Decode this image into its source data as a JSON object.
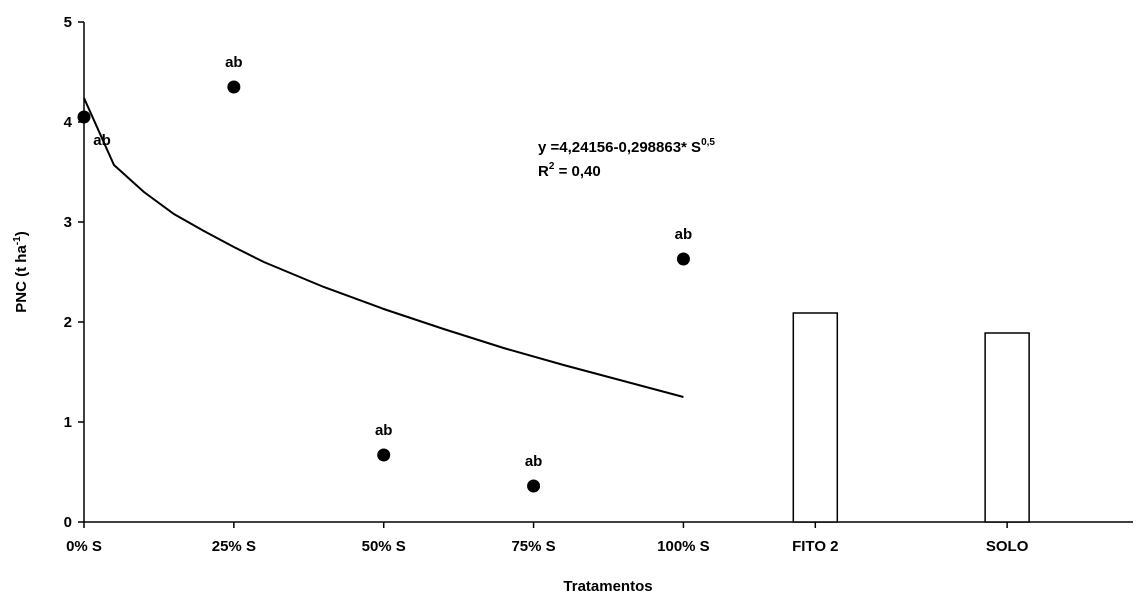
{
  "chart_data": {
    "type": "combo",
    "x_label": "Tratamentos",
    "y_label": {
      "text": "PNC (t ha",
      "sup": "-1",
      "tail": ")"
    },
    "equation": {
      "line1": "y =4,24156-0,298863* S",
      "line1_sup": "0,5",
      "line2": "R",
      "line2_sup": "2",
      "line2_tail": " = 0,40"
    },
    "xlim": [
      0,
      175
    ],
    "xticks": [
      {
        "value": 0,
        "label": "0% S"
      },
      {
        "value": 25,
        "label": "25% S"
      },
      {
        "value": 50,
        "label": "50% S"
      },
      {
        "value": 75,
        "label": "75% S"
      },
      {
        "value": 100,
        "label": "100% S"
      },
      {
        "value": 122,
        "label": "FITO 2"
      },
      {
        "value": 154,
        "label": "SOLO"
      }
    ],
    "ylim": [
      0,
      5
    ],
    "yticks": [
      0,
      1,
      2,
      3,
      4,
      5
    ],
    "grid": false,
    "points": {
      "color": "#000000",
      "x": [
        0,
        25,
        50,
        75,
        100
      ],
      "values": [
        4.05,
        4.35,
        0.67,
        0.36,
        2.63
      ],
      "labels": [
        "ab",
        "ab",
        "ab",
        "ab",
        "ab"
      ]
    },
    "fit": {
      "color": "#000000",
      "x": [
        0,
        5,
        10,
        15,
        20,
        25,
        30,
        40,
        50,
        60,
        70,
        80,
        90,
        100
      ],
      "values": [
        4.24,
        3.57,
        3.3,
        3.08,
        2.91,
        2.75,
        2.6,
        2.35,
        2.13,
        1.93,
        1.74,
        1.57,
        1.41,
        1.25
      ]
    },
    "bars": {
      "color": "#ffffff",
      "x": [
        122,
        154
      ],
      "values": [
        2.09,
        1.89
      ]
    }
  }
}
